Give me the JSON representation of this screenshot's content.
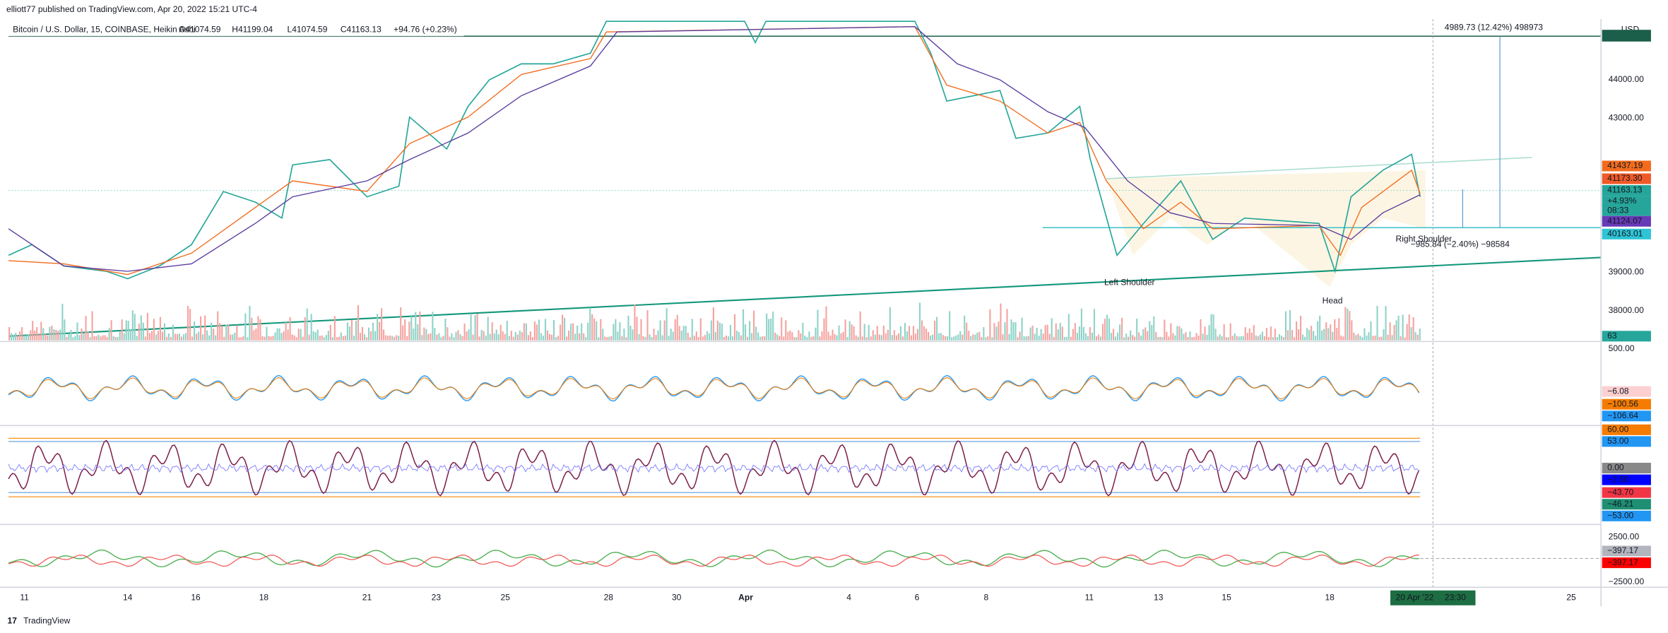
{
  "header": {
    "publisher": "elliott77 published on TradingView.com, Apr 20, 2022 15:21 UTC-4",
    "symbol": "Bitcoin / U.S. Dollar, 15, COINBASE, Heikin Ashi",
    "open": "O41074.59",
    "high": "H41199.04",
    "low": "L41074.59",
    "close": "C41163.13",
    "change": "+94.76 (+0.23%)"
  },
  "price_axis": {
    "currency": "USD",
    "ticks": [
      "44000.00",
      "43000.00",
      "39000.00",
      "38000.00"
    ],
    "badges": [
      "41437.19",
      "41173.30",
      "41163.13",
      "+4.93%",
      "08:33",
      "41124.07",
      "40163.01",
      "63"
    ]
  },
  "annotations": {
    "target": "4989.73 (12.42%) 498973",
    "stop": "−985.84 (−2.40%) −98584",
    "left_shoulder": "Left Shoulder",
    "head": "Head",
    "right_shoulder": "Right Shoulder"
  },
  "indicators": [
    {
      "ticks": [
        "500.00"
      ],
      "badges": [
        "−6.08",
        "−100.56",
        "−106.64"
      ]
    },
    {
      "ticks": [],
      "badges": [
        "60.00",
        "53.00",
        "0.00",
        "−2.50",
        "−43.70",
        "−46.21",
        "−53.00"
      ]
    },
    {
      "ticks": [
        "2500.00",
        "−2500.00"
      ],
      "badges": [
        "−397.17",
        "−397.17"
      ]
    }
  ],
  "time_axis": {
    "labels": [
      "11",
      "14",
      "16",
      "18",
      "21",
      "23",
      "25",
      "28",
      "30",
      "Apr",
      "4",
      "6",
      "8",
      "11",
      "13",
      "15",
      "18",
      "25"
    ],
    "cursor_date": "20 Apr '22",
    "cursor_time": "23:30"
  },
  "footer": "TradingView"
}
